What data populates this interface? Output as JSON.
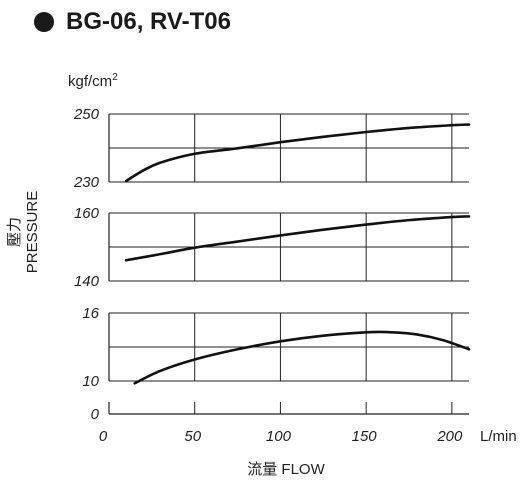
{
  "header": {
    "title": "BG-06, RV-T06",
    "unit": "kgf/cm",
    "unit_sup": "2"
  },
  "axes": {
    "ylabel_line1": "壓力",
    "ylabel_line2": "PRESSURE",
    "xlabel": "流量 FLOW",
    "x_unit": "L/min"
  },
  "chart_data": [
    {
      "type": "line",
      "x_range": [
        0,
        210
      ],
      "y_range": [
        230,
        250
      ],
      "yticks": [
        "250",
        "230"
      ],
      "series": [
        {
          "x": [
            10,
            20,
            30,
            50,
            75,
            100,
            125,
            150,
            175,
            200,
            210
          ],
          "y": [
            230.3,
            233.4,
            235.7,
            238.3,
            239.9,
            241.7,
            243.3,
            244.7,
            245.9,
            246.7,
            246.9
          ]
        }
      ]
    },
    {
      "type": "line",
      "x_range": [
        0,
        210
      ],
      "y_range": [
        140,
        160
      ],
      "yticks": [
        "160",
        "140"
      ],
      "series": [
        {
          "x": [
            10,
            30,
            50,
            75,
            100,
            125,
            150,
            175,
            200,
            210
          ],
          "y": [
            146.1,
            147.9,
            149.8,
            151.6,
            153.4,
            155.1,
            156.6,
            157.9,
            158.8,
            159.0
          ]
        }
      ]
    },
    {
      "type": "line",
      "x_range": [
        0,
        210
      ],
      "y_range": [
        10,
        16
      ],
      "yticks": [
        "16",
        "10"
      ],
      "series": [
        {
          "x": [
            15,
            30,
            50,
            75,
            100,
            125,
            150,
            165,
            180,
            195,
            210
          ],
          "y": [
            9.8,
            10.9,
            11.9,
            12.8,
            13.5,
            14.0,
            14.3,
            14.3,
            14.1,
            13.6,
            12.8
          ]
        }
      ]
    }
  ],
  "x_ticks": [
    "0",
    "50",
    "100",
    "150",
    "200"
  ],
  "x_tick_values": [
    0,
    50,
    100,
    150,
    200
  ],
  "x_zero_label": "0"
}
